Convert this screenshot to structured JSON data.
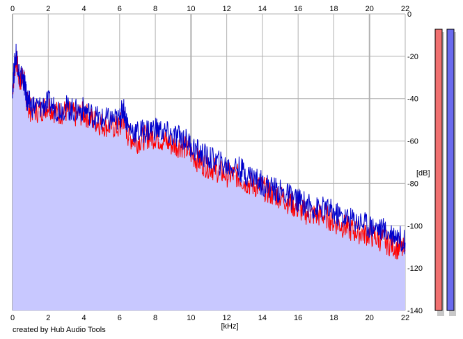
{
  "credit": "created by Hub Audio Tools",
  "chart_data": {
    "type": "area",
    "xlabel": "[kHz]",
    "ylabel": "[dB]",
    "xlim": [
      0,
      22
    ],
    "ylim": [
      -140,
      0
    ],
    "x_ticks": [
      "0",
      "2",
      "4",
      "6",
      "8",
      "10",
      "12",
      "14",
      "16",
      "18",
      "20",
      "22"
    ],
    "y_ticks": [
      "0",
      "-20",
      "-40",
      "-60",
      "-80",
      "-100",
      "-120",
      "-140"
    ],
    "grid": true,
    "fill_color": "#c8c8ff",
    "series": [
      {
        "color": "#ff0000",
        "x": [
          0,
          0.2,
          0.4,
          0.6,
          0.8,
          1,
          1.5,
          2,
          2.5,
          3,
          3.5,
          4,
          4.5,
          5,
          5.5,
          6,
          6.2,
          6.5,
          7,
          7.5,
          8,
          8.5,
          9,
          9.5,
          10,
          10.5,
          11,
          11.5,
          12,
          12.5,
          13,
          13.5,
          14,
          14.5,
          15,
          15.5,
          16,
          16.5,
          17,
          17.5,
          18,
          18.5,
          19,
          19.5,
          20,
          20.5,
          21,
          21.5,
          22
        ],
        "values": [
          -35,
          -20,
          -32,
          -28,
          -42,
          -45,
          -46,
          -43,
          -47,
          -46,
          -48,
          -47,
          -50,
          -52,
          -53,
          -54,
          -48,
          -58,
          -60,
          -58,
          -58,
          -60,
          -62,
          -62,
          -66,
          -70,
          -72,
          -74,
          -76,
          -76,
          -79,
          -81,
          -82,
          -85,
          -86,
          -89,
          -92,
          -94,
          -95,
          -95,
          -98,
          -100,
          -102,
          -103,
          -104,
          -106,
          -108,
          -110,
          -112
        ]
      },
      {
        "color": "#0000cc",
        "x": [
          0,
          0.2,
          0.4,
          0.6,
          0.8,
          1,
          1.5,
          2,
          2.5,
          3,
          3.5,
          4,
          4.5,
          5,
          5.5,
          6,
          6.2,
          6.5,
          7,
          7.5,
          8,
          8.5,
          9,
          9.5,
          10,
          10.5,
          11,
          11.5,
          12,
          12.5,
          13,
          13.5,
          14,
          14.5,
          15,
          15.5,
          16,
          16.5,
          17,
          17.5,
          18,
          18.5,
          19,
          19.5,
          20,
          20.5,
          21,
          21.5,
          22
        ],
        "values": [
          -34,
          -18,
          -30,
          -30,
          -40,
          -43,
          -44,
          -42,
          -45,
          -44,
          -46,
          -45,
          -48,
          -50,
          -50,
          -50,
          -44,
          -54,
          -56,
          -55,
          -54,
          -56,
          -58,
          -58,
          -62,
          -66,
          -68,
          -70,
          -72,
          -72,
          -75,
          -77,
          -80,
          -82,
          -84,
          -86,
          -88,
          -90,
          -92,
          -92,
          -94,
          -96,
          -97,
          -98,
          -100,
          -101,
          -103,
          -104,
          -108
        ]
      }
    ],
    "meters": [
      {
        "color": "#f07070",
        "level": 1.0
      },
      {
        "color": "#6a6aee",
        "level": 1.0
      }
    ]
  }
}
